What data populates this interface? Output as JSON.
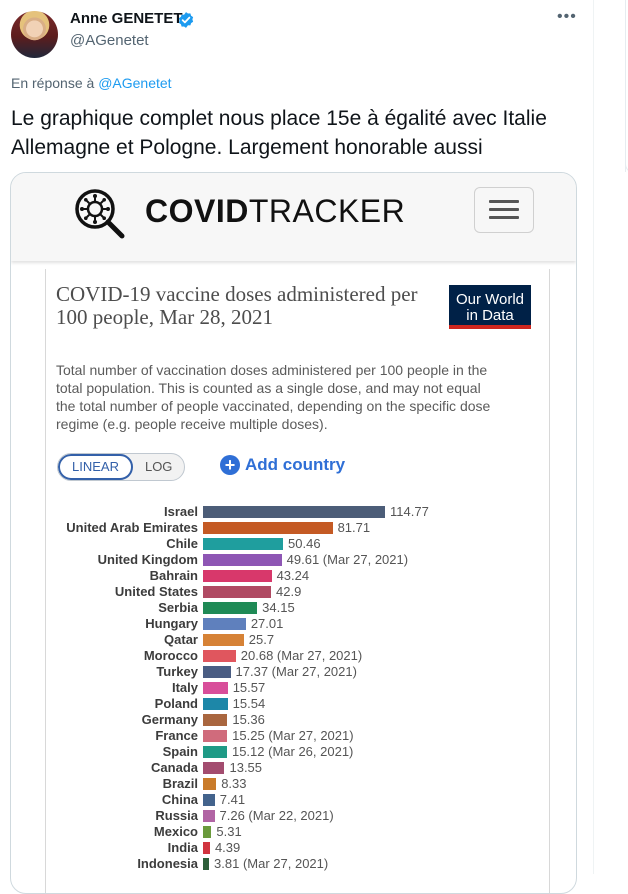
{
  "author": {
    "name": "Anne GENETET",
    "handle": "@AGenetet",
    "verified": true
  },
  "menu_icon": "more-dots-icon",
  "reply_to": {
    "prefix": "En réponse à",
    "mention": "@AGenetet"
  },
  "tweet_text": "Le graphique complet nous place 15e à égalité avec Italie Allemagne et Pologne. Largement honorable aussi",
  "site": {
    "brand_bold": "COVID",
    "brand_rest": "TRACKER",
    "logo_icon": "virus-magnifier-icon",
    "menu_icon": "hamburger-icon"
  },
  "chart": {
    "title": "COVID-19 vaccine doses administered per 100 people, Mar 28, 2021",
    "subtitle": "Total number of vaccination doses administered per 100 people in the total population. This is counted as a single dose, and may not equal the total number of people vaccinated, depending on the specific dose regime (e.g. people receive multiple doses).",
    "owid": [
      "Our World",
      "in Data"
    ],
    "scale": {
      "linear": "LINEAR",
      "log": "LOG",
      "selected": "LINEAR"
    },
    "add_country": "Add country",
    "colors": {
      "owid_navy": "#002147",
      "owid_red": "#ce261e",
      "accent_blue": "#2f6fd6"
    }
  },
  "chart_data": {
    "type": "bar",
    "orientation": "horizontal",
    "categories": [
      "Israel",
      "United Arab Emirates",
      "Chile",
      "United Kingdom",
      "Bahrain",
      "United States",
      "Serbia",
      "Hungary",
      "Qatar",
      "Morocco",
      "Turkey",
      "Italy",
      "Poland",
      "Germany",
      "France",
      "Spain",
      "Canada",
      "Brazil",
      "China",
      "Russia",
      "Mexico",
      "India",
      "Indonesia"
    ],
    "values": [
      114.77,
      81.71,
      50.46,
      49.61,
      43.24,
      42.9,
      34.15,
      27.01,
      25.7,
      20.68,
      17.37,
      15.57,
      15.54,
      15.36,
      15.25,
      15.12,
      13.55,
      8.33,
      7.41,
      7.26,
      5.31,
      4.39,
      3.81
    ],
    "value_labels": [
      "114.77",
      "81.71",
      "50.46",
      "49.61 (Mar 27, 2021)",
      "43.24",
      "42.9",
      "34.15",
      "27.01",
      "25.7",
      "20.68 (Mar 27, 2021)",
      "17.37 (Mar 27, 2021)",
      "15.57",
      "15.54",
      "15.36",
      "15.25 (Mar 27, 2021)",
      "15.12 (Mar 26, 2021)",
      "13.55",
      "8.33",
      "7.41",
      "7.26 (Mar 22, 2021)",
      "5.31",
      "4.39",
      "3.81 (Mar 27, 2021)"
    ],
    "colors": [
      "#4c5d78",
      "#c45a24",
      "#1f9e9e",
      "#8e56b4",
      "#d8386b",
      "#b04a63",
      "#1f8a56",
      "#5f80bd",
      "#d68236",
      "#e0565e",
      "#4a5d83",
      "#d84e9a",
      "#1d87a8",
      "#a9663f",
      "#d06b7c",
      "#1f9a86",
      "#a34c6f",
      "#c97b2a",
      "#43638c",
      "#b164a4",
      "#6a9a3c",
      "#d0343f",
      "#2d5f3a"
    ],
    "xlim": [
      0,
      114.77
    ]
  }
}
